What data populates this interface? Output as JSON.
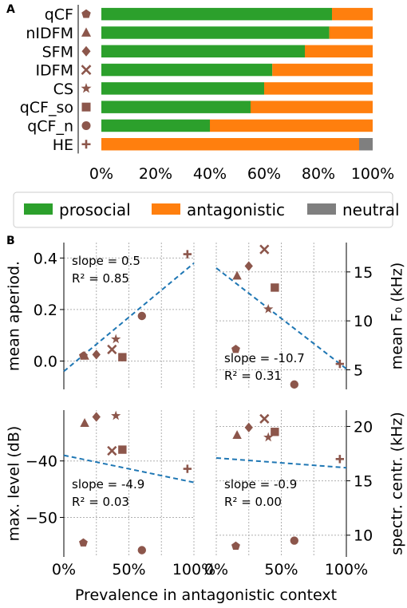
{
  "colors": {
    "prosocial": "#2ca02c",
    "antagonistic": "#ff7f0e",
    "neutral": "#7f7f7f",
    "marker": "#8c564b",
    "regression": "#1f77b4",
    "grid": "#b0b0b0"
  },
  "chart_data": [
    {
      "panel": "A",
      "type": "bar",
      "orientation": "horizontal",
      "stacked": true,
      "categories": [
        "qCF",
        "nIDFM",
        "SFM",
        "IDFM",
        "CS",
        "qCF_so",
        "qCF_n",
        "HE"
      ],
      "markers": [
        "pentagon",
        "triangle",
        "diamond",
        "x",
        "star",
        "square",
        "circle",
        "plus"
      ],
      "series": [
        {
          "name": "prosocial",
          "values": [
            85,
            84,
            75,
            63,
            60,
            55,
            40,
            0
          ]
        },
        {
          "name": "antagonistic",
          "values": [
            15,
            16,
            25,
            37,
            40,
            45,
            60,
            95
          ]
        },
        {
          "name": "neutral",
          "values": [
            0,
            0,
            0,
            0,
            0,
            0,
            0,
            5
          ]
        }
      ],
      "xlim": [
        0,
        100
      ],
      "xticks": [
        "0%",
        "20%",
        "40%",
        "60%",
        "80%",
        "100%"
      ],
      "legend": {
        "placement": "below",
        "entries": [
          "prosocial",
          "antagonistic",
          "neutral"
        ]
      }
    },
    {
      "panel": "B",
      "type": "scatter",
      "subplots": [
        {
          "ylabel": "mean aperiod.",
          "ylabel_side": "left",
          "ylim": [
            -0.11,
            0.46
          ],
          "yticks": [
            0.0,
            0.2,
            0.4
          ],
          "ytick_labels": [
            "0.0",
            "0.2",
            "0.4"
          ],
          "xlim": [
            0,
            100
          ],
          "points": [
            {
              "marker": "pentagon",
              "x": 15,
              "y": 0.02
            },
            {
              "marker": "triangle",
              "x": 16,
              "y": 0.02
            },
            {
              "marker": "diamond",
              "x": 25,
              "y": 0.025
            },
            {
              "marker": "x",
              "x": 37,
              "y": 0.045
            },
            {
              "marker": "star",
              "x": 40,
              "y": 0.085
            },
            {
              "marker": "square",
              "x": 45,
              "y": 0.015
            },
            {
              "marker": "circle",
              "x": 60,
              "y": 0.175
            },
            {
              "marker": "plus",
              "x": 95,
              "y": 0.415
            }
          ],
          "fit": {
            "slope_label": "slope = 0.5",
            "r2_label": "R² = 0.85",
            "y_at_0": -0.04,
            "y_at_100": 0.38
          }
        },
        {
          "ylabel": "mean F₀ (kHz)",
          "ylabel_side": "right",
          "ylim": [
            3.0,
            18.0
          ],
          "yticks": [
            5,
            10,
            15
          ],
          "ytick_labels": [
            "5",
            "10",
            "15"
          ],
          "xlim": [
            0,
            100
          ],
          "points": [
            {
              "marker": "pentagon",
              "x": 15,
              "y": 7.1
            },
            {
              "marker": "triangle",
              "x": 16,
              "y": 14.6
            },
            {
              "marker": "diamond",
              "x": 25,
              "y": 15.6
            },
            {
              "marker": "x",
              "x": 37,
              "y": 17.3
            },
            {
              "marker": "star",
              "x": 40,
              "y": 11.2
            },
            {
              "marker": "square",
              "x": 45,
              "y": 13.4
            },
            {
              "marker": "circle",
              "x": 60,
              "y": 3.5
            },
            {
              "marker": "plus",
              "x": 95,
              "y": 5.6
            }
          ],
          "fit": {
            "slope_label": "slope = -10.7",
            "r2_label": "R² = 0.31",
            "y_at_0": 15.4,
            "y_at_100": 5.1
          }
        },
        {
          "ylabel": "max. level (dB)",
          "ylabel_side": "left",
          "ylim": [
            -57,
            -31
          ],
          "yticks": [
            -50,
            -40
          ],
          "ytick_labels": [
            "−50",
            "−40"
          ],
          "xlim": [
            0,
            100
          ],
          "xticks": [
            "0%",
            "50%",
            "100%"
          ],
          "points": [
            {
              "marker": "pentagon",
              "x": 15,
              "y": -54.5
            },
            {
              "marker": "triangle",
              "x": 16,
              "y": -33.3
            },
            {
              "marker": "diamond",
              "x": 25,
              "y": -32.2
            },
            {
              "marker": "x",
              "x": 37,
              "y": -38.2
            },
            {
              "marker": "star",
              "x": 40,
              "y": -32.0
            },
            {
              "marker": "square",
              "x": 45,
              "y": -38.0
            },
            {
              "marker": "circle",
              "x": 60,
              "y": -55.8
            },
            {
              "marker": "plus",
              "x": 95,
              "y": -41.4
            }
          ],
          "fit": {
            "slope_label": "slope = -4.9",
            "r2_label": "R² = 0.03",
            "y_at_0": -39.0,
            "y_at_100": -43.8
          }
        },
        {
          "ylabel": "spectr. centr. (kHz)",
          "ylabel_side": "right",
          "ylim": [
            8.0,
            21.5
          ],
          "yticks": [
            10,
            15,
            20
          ],
          "ytick_labels": [
            "10",
            "15",
            "20"
          ],
          "xlim": [
            0,
            100
          ],
          "xticks": [
            "0%",
            "50%",
            "100%"
          ],
          "points": [
            {
              "marker": "pentagon",
              "x": 15,
              "y": 9.0
            },
            {
              "marker": "triangle",
              "x": 16,
              "y": 19.2
            },
            {
              "marker": "diamond",
              "x": 25,
              "y": 19.9
            },
            {
              "marker": "x",
              "x": 37,
              "y": 20.7
            },
            {
              "marker": "star",
              "x": 40,
              "y": 19.0
            },
            {
              "marker": "square",
              "x": 45,
              "y": 19.5
            },
            {
              "marker": "circle",
              "x": 60,
              "y": 9.5
            },
            {
              "marker": "plus",
              "x": 95,
              "y": 17.0
            }
          ],
          "fit": {
            "slope_label": "slope = -0.9",
            "r2_label": "R² = 0.00",
            "y_at_0": 17.1,
            "y_at_100": 16.2
          }
        }
      ],
      "xlabel": "Prevalence in antagonistic context"
    }
  ],
  "panel_letters": [
    "A",
    "B"
  ]
}
